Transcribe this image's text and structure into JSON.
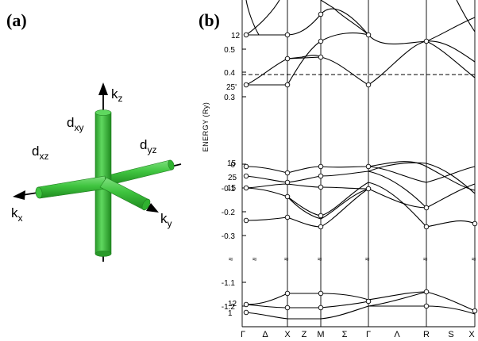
{
  "panel_a": {
    "label": "(a)",
    "axes": {
      "kx": "k",
      "kx_sub": "x",
      "ky": "k",
      "ky_sub": "y",
      "kz": "k",
      "kz_sub": "z"
    },
    "orbitals": {
      "dxy": "d",
      "dxy_sub": "xy",
      "dxz": "d",
      "dxz_sub": "xz",
      "dyz": "d",
      "dyz_sub": "yz"
    },
    "tube_color": "#3fc43f",
    "tube_dark": "#1f7d1f"
  },
  "panel_b": {
    "label": "(b)",
    "ylabel": "ENERGY (Ry)",
    "kpoints": [
      "Γ",
      "Δ",
      "X",
      "Z",
      "M",
      "Σ",
      "Γ",
      "Λ",
      "R",
      "S",
      "X"
    ],
    "ticks_upper": [
      "0.5",
      "0.4",
      "0.3",
      "0",
      "-0.1",
      "-0.2",
      "-0.3"
    ],
    "ticks_lower": [
      "-1.1",
      "-1.2"
    ],
    "state_labels": [
      "12",
      "25'",
      "15",
      "25",
      "15",
      "12",
      "1"
    ],
    "break_marks": [
      "≈",
      "≈",
      "≈",
      "≈",
      "≈",
      "≈",
      "≈"
    ],
    "fermi_level_ry": 0.39
  }
}
